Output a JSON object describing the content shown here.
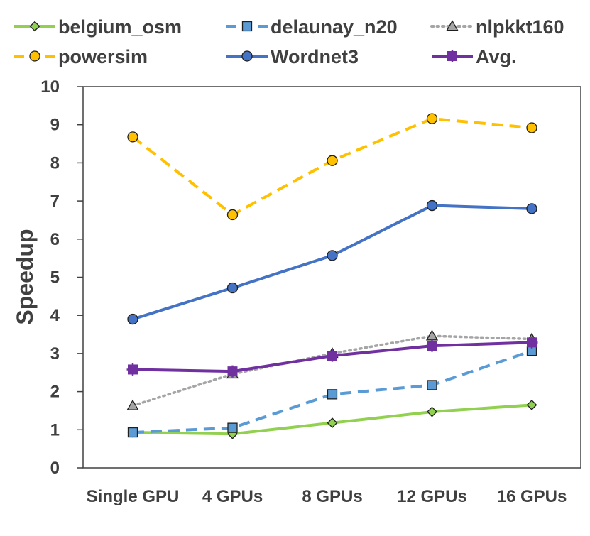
{
  "chart_data": {
    "type": "line",
    "title": "",
    "xlabel": "",
    "ylabel": "Speedup",
    "ylim": [
      0,
      10
    ],
    "yticks": [
      0,
      1,
      2,
      3,
      4,
      5,
      6,
      7,
      8,
      9,
      10
    ],
    "categories": [
      "Single GPU",
      "4 GPUs",
      "8 GPUs",
      "12 GPUs",
      "16 GPUs"
    ],
    "grid": false,
    "legend_position": "top",
    "series": [
      {
        "name": "belgium_osm",
        "values": [
          0.93,
          0.89,
          1.18,
          1.47,
          1.65
        ],
        "color": "#92d050",
        "marker": "diamond",
        "line": "solid"
      },
      {
        "name": "delaunay_n20",
        "values": [
          0.93,
          1.05,
          1.93,
          2.17,
          3.07
        ],
        "color": "#5b9bd5",
        "marker": "square",
        "line": "dashed"
      },
      {
        "name": "nlpkkt160",
        "values": [
          1.63,
          2.46,
          3.0,
          3.46,
          3.38
        ],
        "color": "#a5a5a5",
        "marker": "triangle",
        "line": "dotted"
      },
      {
        "name": "powersim",
        "values": [
          8.68,
          6.64,
          8.06,
          9.16,
          8.92
        ],
        "color": "#ffc000",
        "marker": "circle",
        "line": "dashed"
      },
      {
        "name": "Wordnet3",
        "values": [
          3.9,
          4.72,
          5.57,
          6.88,
          6.8
        ],
        "color": "#4472c4",
        "marker": "circle",
        "line": "solid"
      },
      {
        "name": "Avg.",
        "values": [
          2.58,
          2.53,
          2.94,
          3.2,
          3.29
        ],
        "color": "#7030a0",
        "marker": "square-cross",
        "line": "solid"
      }
    ]
  }
}
